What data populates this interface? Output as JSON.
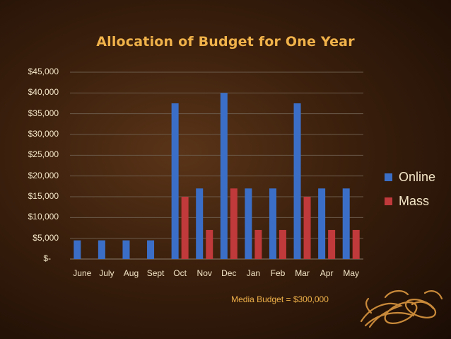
{
  "chart_data": {
    "type": "bar",
    "title": "Allocation of Budget for One Year",
    "categories": [
      "June",
      "July",
      "Aug",
      "Sept",
      "Oct",
      "Nov",
      "Dec",
      "Jan",
      "Feb",
      "Mar",
      "Apr",
      "May"
    ],
    "series": [
      {
        "name": "Online",
        "color": "#3b6fc7",
        "values": [
          4500,
          4500,
          4500,
          4500,
          37500,
          17000,
          40000,
          17000,
          17000,
          37500,
          17000,
          17000
        ]
      },
      {
        "name": "Mass",
        "color": "#c0393b",
        "values": [
          0,
          0,
          0,
          0,
          15000,
          7000,
          17000,
          7000,
          7000,
          15000,
          7000,
          7000
        ]
      }
    ],
    "ylim": [
      0,
      45000
    ],
    "yticks": [
      0,
      5000,
      10000,
      15000,
      20000,
      25000,
      30000,
      35000,
      40000,
      45000
    ],
    "ytick_labels": [
      "$-",
      "$5,000",
      "$10,000",
      "$15,000",
      "$20,000",
      "$25,000",
      "$30,000",
      "$35,000",
      "$40,000",
      "$45,000"
    ],
    "grid": true,
    "legend_position": "right",
    "annotation": "Media Budget = $300,000"
  },
  "ornament_icon": "cocoa-pod-icon"
}
